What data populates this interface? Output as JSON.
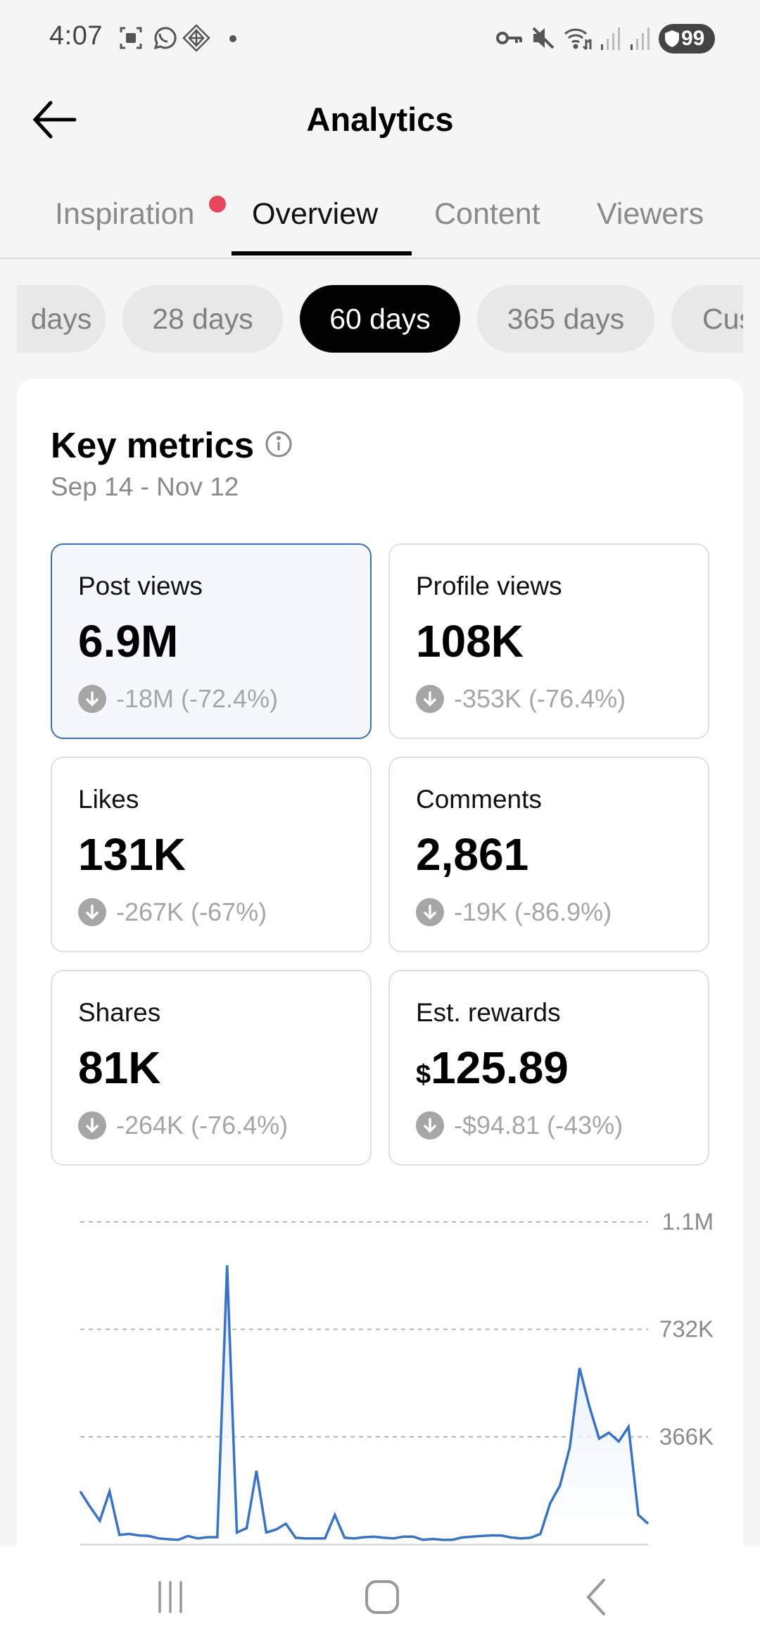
{
  "status_bar": {
    "time": "4:07",
    "left_icons": [
      "screenshot-icon",
      "whatsapp-icon",
      "app-diamond-icon",
      "notification-dot"
    ],
    "right_icons": [
      "vpn-key-icon",
      "mute-icon",
      "wifi-icon",
      "signal-icon",
      "signal-icon"
    ],
    "battery": "99"
  },
  "header": {
    "title": "Analytics",
    "back_icon": "back-arrow-icon"
  },
  "tabs": [
    {
      "label": "Inspiration",
      "active": false,
      "has_badge": true
    },
    {
      "label": "Overview",
      "active": true,
      "has_badge": false
    },
    {
      "label": "Content",
      "active": false,
      "has_badge": false
    },
    {
      "label": "Viewers",
      "active": false,
      "has_badge": false
    }
  ],
  "date_ranges": [
    {
      "label": "days",
      "active": false
    },
    {
      "label": "28 days",
      "active": false
    },
    {
      "label": "60 days",
      "active": true
    },
    {
      "label": "365 days",
      "active": false
    },
    {
      "label": "Cus",
      "active": false
    }
  ],
  "key_metrics": {
    "title": "Key metrics",
    "date_range": "Sep 14 - Nov 12",
    "metrics": [
      {
        "label": "Post views",
        "value": "6.9M",
        "currency": "",
        "change": "-18M (-72.4%)",
        "trend": "down",
        "selected": true
      },
      {
        "label": "Profile views",
        "value": "108K",
        "currency": "",
        "change": "-353K (-76.4%)",
        "trend": "down",
        "selected": false
      },
      {
        "label": "Likes",
        "value": "131K",
        "currency": "",
        "change": "-267K (-67%)",
        "trend": "down",
        "selected": false
      },
      {
        "label": "Comments",
        "value": "2,861",
        "currency": "",
        "change": "-19K (-86.9%)",
        "trend": "down",
        "selected": false
      },
      {
        "label": "Shares",
        "value": "81K",
        "currency": "",
        "change": "-264K (-76.4%)",
        "trend": "down",
        "selected": false
      },
      {
        "label": "Est. rewards",
        "value": "125.89",
        "currency": "$",
        "change": "-$94.81 (-43%)",
        "trend": "down",
        "selected": false
      }
    ]
  },
  "chart_data": {
    "type": "area",
    "title": "",
    "series": [
      {
        "name": "Post views",
        "color": "#3a72c4",
        "values": [
          160000,
          108000,
          60000,
          160000,
          12000,
          15000,
          10000,
          8000,
          0,
          -3000,
          -5000,
          8000,
          0,
          4000,
          4000,
          930000,
          20000,
          35000,
          230000,
          20000,
          30000,
          50000,
          2000,
          0,
          0,
          0,
          80000,
          2000,
          0,
          4000,
          6000,
          2000,
          0,
          6000,
          6000,
          -5000,
          -2000,
          -5000,
          -5000,
          3000,
          6000,
          8000,
          10000,
          10000,
          3000,
          0,
          2000,
          15000,
          120000,
          180000,
          310000,
          580000,
          450000,
          340000,
          360000,
          330000,
          380000,
          80000,
          50000
        ]
      }
    ],
    "x_range": [
      "Sep 14",
      "Nov 12"
    ],
    "y_ticks": [
      "366K",
      "732K",
      "1.1M"
    ],
    "y_tick_values": [
      366000,
      732000,
      1098000
    ],
    "ylim": [
      0,
      1098000
    ],
    "grid": true,
    "xlabel": "",
    "ylabel": ""
  },
  "nav_bar": {
    "buttons": [
      "recent-apps",
      "home",
      "back"
    ]
  },
  "colors": {
    "accent": "#3a72c4",
    "badge": "#e8455c",
    "selected_card_bg": "#f4f8fd",
    "selected_card_border": "#3a6fb0"
  }
}
